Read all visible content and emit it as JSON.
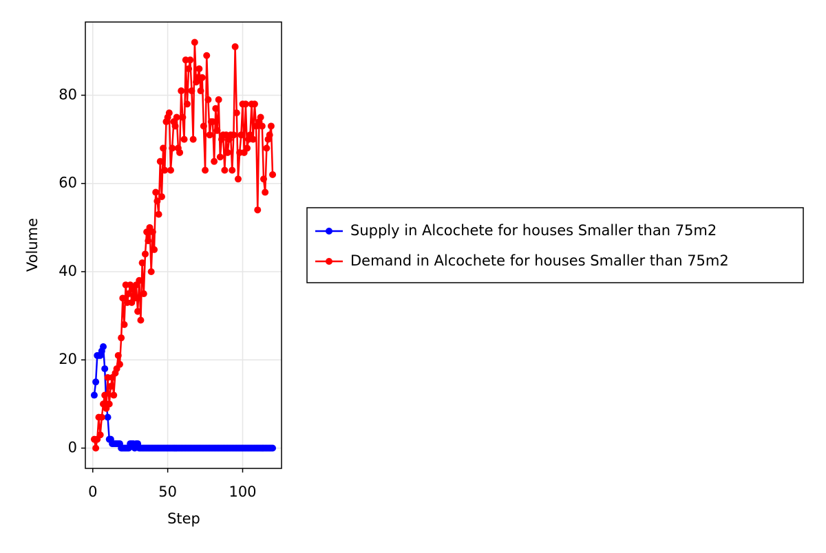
{
  "chart_data": {
    "type": "line",
    "xlabel": "Step",
    "ylabel": "Volume",
    "x": [
      1,
      2,
      3,
      4,
      5,
      6,
      7,
      8,
      9,
      10,
      11,
      12,
      13,
      14,
      15,
      16,
      17,
      18,
      19,
      20,
      21,
      22,
      23,
      24,
      25,
      26,
      27,
      28,
      29,
      30,
      31,
      32,
      33,
      34,
      35,
      36,
      37,
      38,
      39,
      40,
      41,
      42,
      43,
      44,
      45,
      46,
      47,
      48,
      49,
      50,
      51,
      52,
      53,
      54,
      55,
      56,
      57,
      58,
      59,
      60,
      61,
      62,
      63,
      64,
      65,
      66,
      67,
      68,
      69,
      70,
      71,
      72,
      73,
      74,
      75,
      76,
      77,
      78,
      79,
      80,
      81,
      82,
      83,
      84,
      85,
      86,
      87,
      88,
      89,
      90,
      91,
      92,
      93,
      94,
      95,
      96,
      97,
      98,
      99,
      100,
      101,
      102,
      103,
      104,
      105,
      106,
      107,
      108,
      109,
      110,
      111,
      112,
      113,
      114,
      115,
      116,
      117,
      118,
      119,
      120
    ],
    "series": [
      {
        "name": "Supply in Alcochete for houses Smaller than 75m2",
        "color": "#0000ff",
        "values": [
          12,
          15,
          21,
          21,
          21,
          22,
          23,
          18,
          10,
          7,
          2,
          2,
          1,
          1,
          1,
          1,
          1,
          1,
          0,
          0,
          0,
          0,
          0,
          0,
          1,
          1,
          1,
          0,
          1,
          1,
          0,
          0,
          0,
          0,
          0,
          0,
          0,
          0,
          0,
          0,
          0,
          0,
          0,
          0,
          0,
          0,
          0,
          0,
          0,
          0,
          0,
          0,
          0,
          0,
          0,
          0,
          0,
          0,
          0,
          0,
          0,
          0,
          0,
          0,
          0,
          0,
          0,
          0,
          0,
          0,
          0,
          0,
          0,
          0,
          0,
          0,
          0,
          0,
          0,
          0,
          0,
          0,
          0,
          0,
          0,
          0,
          0,
          0,
          0,
          0,
          0,
          0,
          0,
          0,
          0,
          0,
          0,
          0,
          0,
          0,
          0,
          0,
          0,
          0,
          0,
          0,
          0,
          0,
          0,
          0,
          0,
          0,
          0,
          0,
          0,
          0,
          0,
          0,
          0,
          0
        ]
      },
      {
        "name": "Demand in Alcochete for houses Smaller than 75m2",
        "color": "#ff0000",
        "values": [
          2,
          0,
          2,
          7,
          3,
          7,
          10,
          12,
          9,
          16,
          10,
          14,
          16,
          12,
          17,
          18,
          21,
          19,
          25,
          34,
          28,
          37,
          33,
          35,
          37,
          33,
          36,
          34,
          37,
          31,
          38,
          29,
          42,
          35,
          44,
          49,
          47,
          50,
          40,
          49,
          45,
          58,
          56,
          53,
          65,
          57,
          68,
          63,
          74,
          75,
          76,
          63,
          68,
          74,
          73,
          75,
          68,
          67,
          81,
          75,
          70,
          88,
          78,
          86,
          88,
          81,
          70,
          92,
          83,
          84,
          86,
          81,
          84,
          73,
          63,
          89,
          79,
          71,
          74,
          74,
          65,
          77,
          72,
          79,
          66,
          70,
          71,
          63,
          71,
          67,
          70,
          71,
          63,
          71,
          91,
          76,
          61,
          67,
          71,
          78,
          67,
          78,
          68,
          70,
          71,
          78,
          70,
          78,
          73,
          54,
          74,
          75,
          73,
          61,
          58,
          68,
          70,
          71,
          73,
          62
        ]
      }
    ],
    "xlim": [
      -4.95,
      125.95
    ],
    "xticks": [
      0,
      50,
      100
    ],
    "ylim": [
      -4.6,
      96.6
    ],
    "yticks": [
      0,
      20,
      40,
      60,
      80
    ],
    "grid": true,
    "legend": "right"
  }
}
